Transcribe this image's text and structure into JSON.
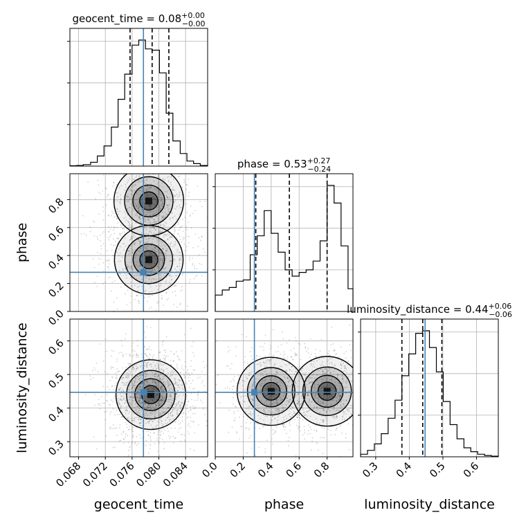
{
  "chart_data": {
    "type": "corner",
    "parameters": [
      "geocent_time",
      "phase",
      "luminosity_distance"
    ],
    "axis_labels": {
      "geocent_time": "geocent_time",
      "phase": "phase",
      "luminosity_distance": "luminosity_distance"
    },
    "titles": {
      "geocent_time": {
        "name": "geocent_time",
        "median": "0.08",
        "plus": "+0.00",
        "minus": "−0.00"
      },
      "phase": {
        "name": "phase",
        "median": "0.53",
        "plus": "+0.27",
        "minus": "−0.24"
      },
      "luminosity_distance": {
        "name": "luminosity_distance",
        "median": "0.44",
        "plus": "+0.06",
        "minus": "−0.06"
      }
    },
    "ranges": {
      "geocent_time": [
        0.0667,
        0.0873
      ],
      "phase": [
        0.0,
        0.985
      ],
      "luminosity_distance": [
        0.255,
        0.665
      ]
    },
    "truths": {
      "geocent_time": 0.0777,
      "phase": 0.28,
      "luminosity_distance": 0.447
    },
    "quantiles": {
      "geocent_time": [
        0.0757,
        0.079,
        0.0815
      ],
      "phase": [
        0.29,
        0.53,
        0.8
      ],
      "luminosity_distance": [
        0.378,
        0.44,
        0.497
      ]
    },
    "ticks": {
      "geocent_time": {
        "values": [
          0.068,
          0.072,
          0.076,
          0.08,
          0.084
        ],
        "labels": [
          "0.068",
          "0.072",
          "0.076",
          "0.080",
          "0.084"
        ]
      },
      "phase": {
        "values": [
          0.0,
          0.2,
          0.4,
          0.6,
          0.8
        ],
        "labels": [
          "0.0",
          "0.2",
          "0.4",
          "0.6",
          "0.8"
        ]
      },
      "phase_y": {
        "values": [
          0.0,
          0.2,
          0.4,
          0.6,
          0.8
        ],
        "labels": [
          "0.0",
          "0.2",
          "0.4",
          "0.6",
          "0.8"
        ]
      },
      "luminosity_distance": {
        "values": [
          0.3,
          0.4,
          0.5,
          0.6
        ],
        "labels": [
          "0.3",
          "0.4",
          "0.5",
          "0.6"
        ]
      }
    },
    "histograms": {
      "geocent_time": {
        "bin_edges": [
          0.0667,
          0.0677,
          0.0687,
          0.0698,
          0.0708,
          0.0718,
          0.0729,
          0.0739,
          0.0749,
          0.076,
          0.077,
          0.078,
          0.079,
          0.0801,
          0.0811,
          0.0821,
          0.0832,
          0.0842,
          0.0852,
          0.0862,
          0.0873
        ],
        "counts": [
          0.003,
          0.005,
          0.012,
          0.03,
          0.08,
          0.16,
          0.31,
          0.53,
          0.73,
          0.96,
          1.0,
          0.93,
          0.92,
          0.74,
          0.42,
          0.2,
          0.1,
          0.04,
          0.02,
          0.005
        ]
      },
      "phase": {
        "bin_edges": [
          0.0,
          0.05,
          0.1,
          0.15,
          0.2,
          0.25,
          0.3,
          0.35,
          0.4,
          0.45,
          0.5,
          0.55,
          0.6,
          0.65,
          0.7,
          0.75,
          0.8,
          0.85,
          0.9,
          0.95,
          0.985
        ],
        "counts": [
          0.13,
          0.17,
          0.19,
          0.24,
          0.25,
          0.45,
          0.6,
          0.8,
          0.62,
          0.47,
          0.33,
          0.28,
          0.31,
          0.33,
          0.4,
          0.56,
          1.0,
          0.86,
          0.52,
          0.18
        ]
      },
      "luminosity_distance": {
        "bin_edges": [
          0.255,
          0.2755,
          0.296,
          0.3165,
          0.337,
          0.3575,
          0.378,
          0.3985,
          0.419,
          0.4395,
          0.46,
          0.4805,
          0.501,
          0.5215,
          0.542,
          0.5625,
          0.583,
          0.6035,
          0.624,
          0.6445,
          0.665
        ],
        "counts": [
          0.02,
          0.05,
          0.1,
          0.18,
          0.3,
          0.44,
          0.63,
          0.8,
          0.96,
          0.98,
          0.85,
          0.66,
          0.43,
          0.25,
          0.14,
          0.07,
          0.04,
          0.02,
          0.01,
          0.005
        ]
      }
    },
    "joint_modes": {
      "phase_vs_geocent_time": [
        {
          "x": 0.0785,
          "y": 0.79,
          "weight": 1.0
        },
        {
          "x": 0.0785,
          "y": 0.37,
          "weight": 0.9
        }
      ],
      "luminosity_distance_vs_geocent_time": [
        {
          "x": 0.0788,
          "y": 0.44,
          "weight": 1.0
        }
      ],
      "luminosity_distance_vs_phase": [
        {
          "x": 0.4,
          "y": 0.45,
          "weight": 0.85
        },
        {
          "x": 0.8,
          "y": 0.45,
          "weight": 1.0
        }
      ]
    },
    "grid": true,
    "colors": {
      "truth": "#4682b4",
      "hist": "#000000",
      "quantile": "#000000",
      "grid": "#b0b0b0"
    }
  }
}
